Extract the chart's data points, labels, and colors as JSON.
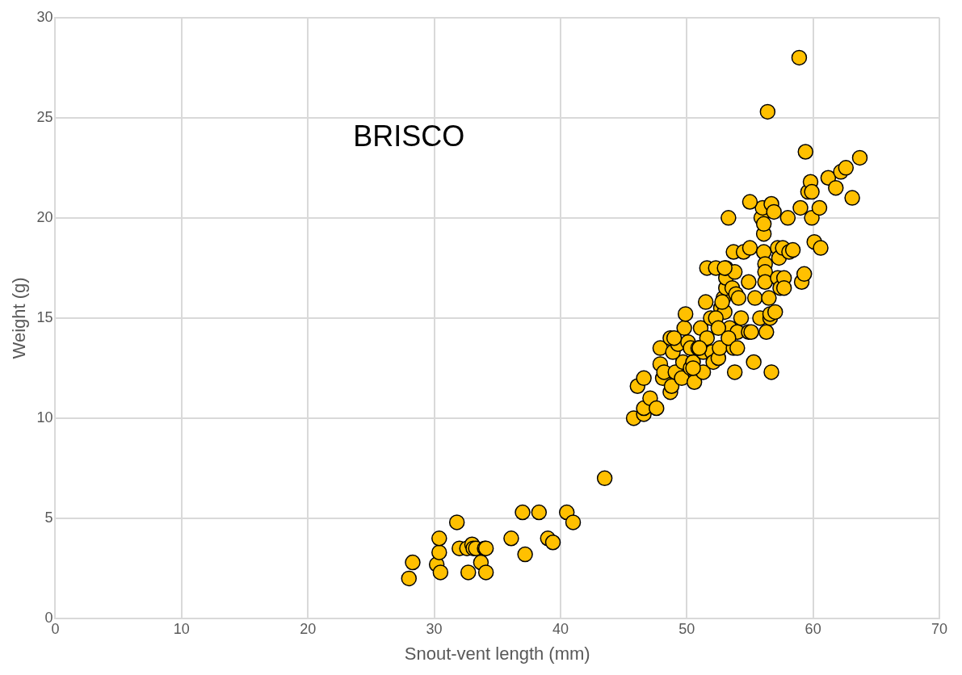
{
  "chart_data": {
    "type": "scatter",
    "xlabel": "Snout-vent length (mm)",
    "ylabel": "Weight (g)",
    "annotations": [
      "BRISCO"
    ],
    "xlim": [
      0,
      70
    ],
    "xticks": [
      0,
      10,
      20,
      30,
      40,
      50,
      60,
      70
    ],
    "ylim": [
      0,
      30
    ],
    "yticks": [
      0,
      5,
      10,
      15,
      20,
      25,
      30
    ],
    "grid": true,
    "legend": false,
    "marker": "circle",
    "series": [
      {
        "color": "#ffc000",
        "x": [
          28.0,
          28.3,
          30.2,
          30.4,
          30.4,
          30.5,
          31.8,
          32.0,
          32.6,
          32.7,
          33.0,
          33.1,
          33.3,
          33.7,
          34.0,
          34.1,
          34.1,
          36.1,
          37.0,
          37.2,
          38.3,
          39.0,
          39.4,
          40.5,
          41.0,
          43.5,
          45.8,
          46.6,
          46.6,
          47.1,
          47.6,
          46.1,
          46.6,
          47.9,
          48.1,
          48.2,
          48.7,
          48.8,
          49.1,
          49.6,
          49.7,
          50.3,
          50.6,
          50.5,
          51.3,
          51.3,
          47.9,
          48.7,
          48.9,
          49.3,
          49.8,
          49.9,
          50.1,
          50.3,
          50.9,
          51.1,
          51.5,
          51.6,
          51.9,
          52.0,
          52.1,
          52.5,
          52.6,
          52.7,
          52.9,
          53.0,
          53.1,
          53.1,
          53.1,
          53.4,
          53.6,
          53.7,
          53.7,
          53.8,
          53.8,
          53.9,
          54.0,
          54.1,
          54.3,
          54.5,
          54.9,
          54.9,
          55.0,
          55.1,
          55.3,
          55.4,
          55.8,
          55.9,
          56.0,
          56.1,
          56.1,
          56.1,
          56.2,
          56.2,
          56.2,
          56.3,
          56.5,
          56.6,
          56.6,
          56.7,
          56.7,
          56.9,
          57.0,
          57.2,
          57.3,
          57.2,
          57.4,
          57.6,
          57.7,
          57.7,
          58.0,
          58.1,
          58.4,
          59.0,
          59.1,
          59.3,
          59.4,
          59.6,
          59.8,
          59.9,
          59.9,
          60.1,
          60.5,
          60.6,
          61.2,
          61.8,
          62.2,
          62.6,
          63.1,
          63.7,
          58.9,
          56.4,
          55.0,
          53.3,
          51.6,
          52.3,
          53.0,
          52.8,
          52.3,
          49.0,
          51.0,
          50.5,
          52.5,
          53.3,
          54.0
        ],
        "values": [
          2.0,
          2.8,
          2.7,
          3.3,
          4.0,
          2.3,
          4.8,
          3.5,
          3.5,
          2.3,
          3.7,
          3.5,
          3.5,
          2.8,
          3.5,
          3.5,
          2.3,
          4.0,
          5.3,
          3.2,
          5.3,
          4.0,
          3.8,
          5.3,
          4.8,
          7.0,
          10.0,
          10.2,
          10.5,
          11.0,
          10.5,
          11.6,
          12.0,
          12.7,
          12.0,
          12.3,
          11.3,
          11.6,
          12.3,
          12.0,
          12.8,
          12.5,
          11.8,
          12.8,
          12.3,
          13.3,
          13.5,
          14.0,
          13.3,
          13.7,
          14.5,
          15.2,
          13.8,
          13.5,
          13.5,
          14.5,
          15.8,
          14.0,
          15.0,
          13.3,
          12.8,
          13.0,
          13.5,
          15.5,
          16.0,
          15.3,
          16.5,
          17.0,
          17.5,
          14.5,
          16.5,
          13.5,
          18.3,
          17.3,
          12.3,
          16.2,
          14.3,
          16.0,
          15.0,
          18.3,
          16.8,
          14.3,
          18.5,
          14.3,
          12.8,
          16.0,
          15.0,
          20.0,
          20.5,
          19.2,
          19.7,
          18.3,
          17.7,
          17.3,
          16.8,
          14.3,
          16.0,
          15.0,
          15.2,
          12.3,
          20.7,
          20.3,
          15.3,
          18.5,
          18.0,
          17.0,
          16.5,
          18.5,
          17.0,
          16.5,
          20.0,
          18.3,
          18.4,
          20.5,
          16.8,
          17.2,
          23.3,
          21.3,
          21.8,
          20.0,
          21.3,
          18.8,
          20.5,
          18.5,
          22.0,
          21.5,
          22.3,
          22.5,
          21.0,
          23.0,
          28.0,
          25.3,
          20.8,
          20.0,
          17.5,
          17.5,
          17.5,
          15.8,
          15.0,
          14.0,
          13.5,
          12.5,
          14.5,
          14.0,
          13.5
        ]
      }
    ]
  }
}
